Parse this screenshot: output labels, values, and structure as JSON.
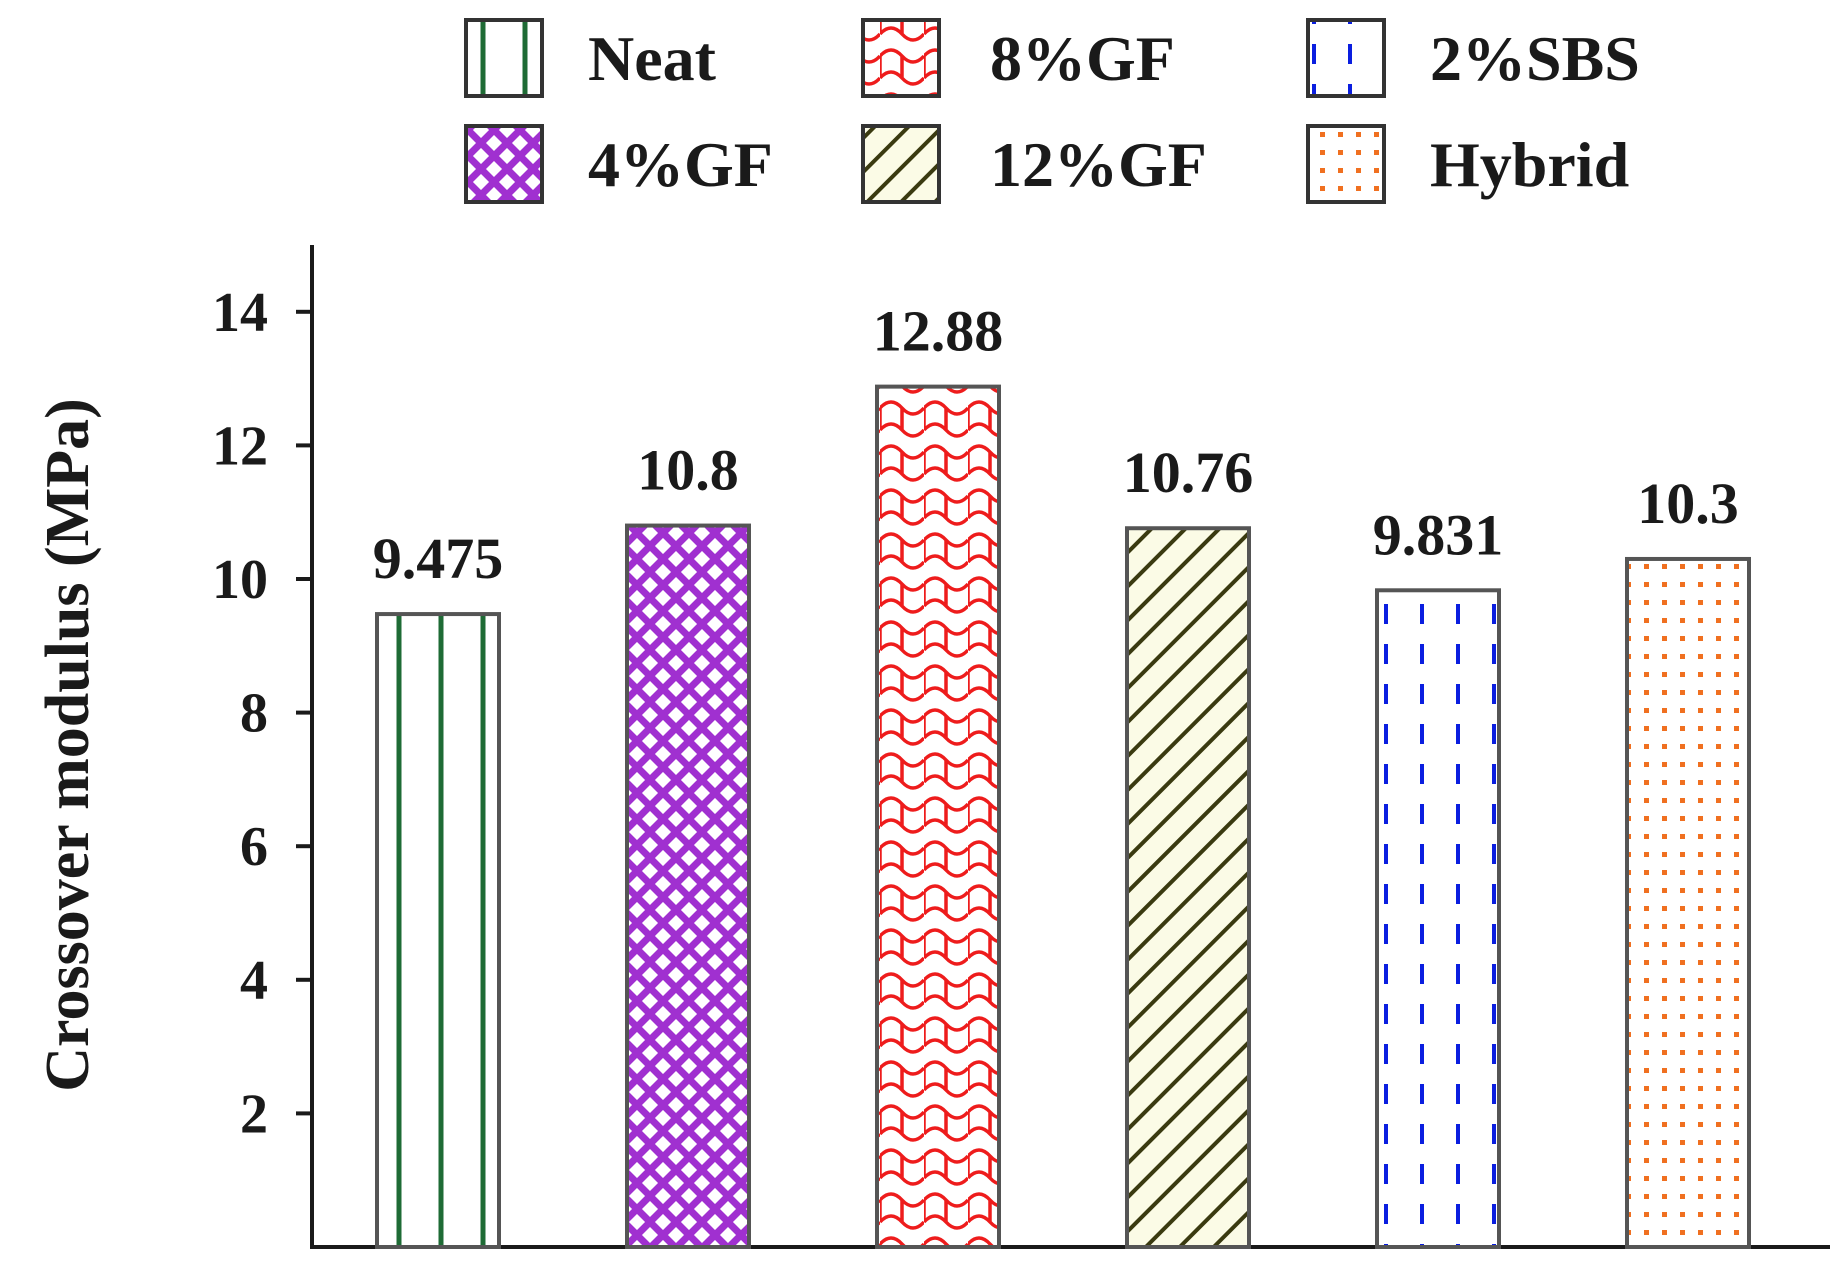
{
  "chart_data": {
    "type": "bar",
    "title": "",
    "xlabel": "",
    "ylabel": "Crossover modulus (MPa)",
    "ylim": [
      0,
      15
    ],
    "yticks": [
      2,
      4,
      6,
      8,
      10,
      12,
      14
    ],
    "grid": false,
    "legend_position": "top",
    "categories": [
      "Neat",
      "4%GF",
      "8%GF",
      "12%GF",
      "2%SBS",
      "Hybrid"
    ],
    "values": [
      9.475,
      10.8,
      12.88,
      10.76,
      9.831,
      10.3
    ],
    "data_labels": [
      "9.475",
      "10.8",
      "12.88",
      "10.76",
      "9.831",
      "10.3"
    ],
    "series_colors": [
      "#1e6b35",
      "#a030d0",
      "#ee1c1c",
      "#3a3a10",
      "#0a1ee0",
      "#f07020"
    ],
    "patterns": [
      "vertical-lines",
      "diamond-grid",
      "scales",
      "diagonal-lines",
      "dashed-vertical",
      "dots"
    ],
    "legend_order": [
      "Neat",
      "8%GF",
      "2%SBS",
      "4%GF",
      "12%GF",
      "Hybrid"
    ]
  }
}
